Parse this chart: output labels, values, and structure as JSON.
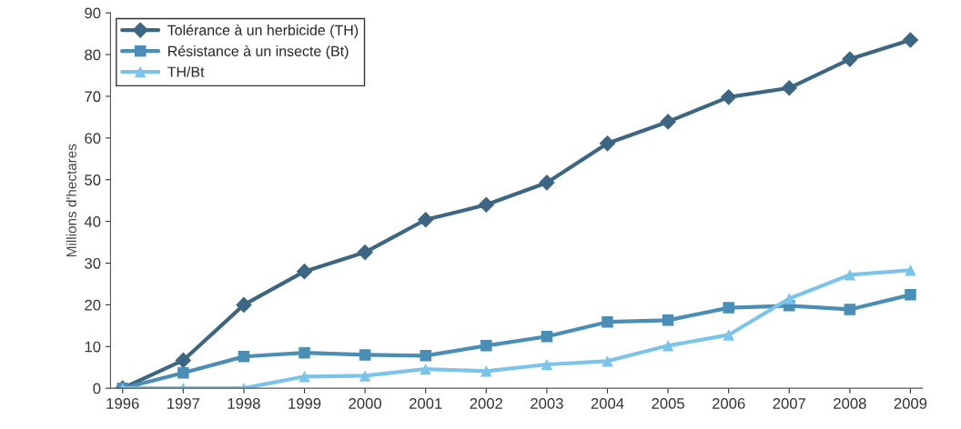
{
  "chart_data": {
    "type": "line",
    "ylabel": "Millions d'hectares",
    "categories": [
      "1996",
      "1997",
      "1998",
      "1999",
      "2000",
      "2001",
      "2002",
      "2003",
      "2004",
      "2005",
      "2006",
      "2007",
      "2008",
      "2009"
    ],
    "series": [
      {
        "name": "Tolérance à un herbicide (TH)",
        "color": "#3d6683",
        "marker": "diamond",
        "values": [
          0,
          6.7,
          20,
          28,
          32.6,
          40.4,
          44,
          49.3,
          58.7,
          63.9,
          69.8,
          72,
          78.9,
          83.5
        ]
      },
      {
        "name": "Résistance à un insecte (Bt)",
        "color": "#4a8db5",
        "marker": "square",
        "values": [
          0,
          3.7,
          7.6,
          8.5,
          8,
          7.8,
          10.2,
          12.4,
          15.9,
          16.3,
          19.3,
          19.8,
          18.9,
          22.4
        ]
      },
      {
        "name": "TH/Bt",
        "color": "#7cc3ea",
        "marker": "triangle",
        "values": [
          0,
          0,
          0,
          2.8,
          3,
          4.6,
          4.1,
          5.7,
          6.5,
          10.2,
          12.8,
          21.5,
          27.2,
          28.3
        ]
      }
    ],
    "ylim": [
      0,
      90
    ],
    "yticks": [
      0,
      10,
      20,
      30,
      40,
      50,
      60,
      70,
      80,
      90
    ],
    "grid": false,
    "legend": "top left",
    "line_style": "solid"
  }
}
